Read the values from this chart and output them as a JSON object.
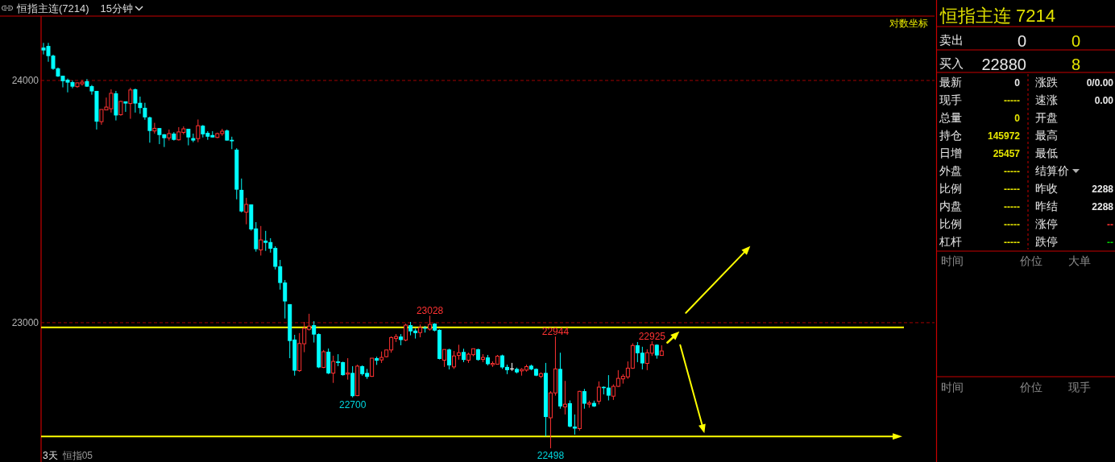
{
  "chart_data": [
    {
      "type": "candlestick",
      "title": "恒指主连(7214)",
      "subtitle": "15分钟",
      "categories": [
        null,
        null,
        null,
        null,
        null,
        null,
        null,
        null,
        null,
        null,
        null,
        null,
        null,
        null,
        null,
        null,
        null,
        null,
        null,
        null,
        null,
        null,
        null,
        null,
        null,
        null,
        null,
        null,
        null,
        null,
        null,
        null,
        null,
        null,
        null,
        null,
        null,
        null,
        null,
        null,
        null,
        null,
        null,
        null,
        null,
        null,
        null,
        null,
        null,
        null,
        null,
        null,
        null,
        null,
        null,
        null,
        null,
        null,
        null,
        null,
        null,
        null,
        null,
        null,
        null,
        null,
        null,
        null,
        null,
        null,
        null,
        null,
        null,
        null,
        null,
        null,
        null,
        null,
        null,
        null,
        null,
        null,
        null,
        null,
        null,
        null,
        null,
        null,
        null,
        null,
        null,
        null,
        null,
        null,
        null,
        null,
        null,
        null,
        null,
        null,
        null,
        null,
        null,
        null,
        null,
        null,
        null,
        null,
        null,
        null,
        null,
        null,
        null,
        null,
        null,
        null,
        null,
        null,
        null,
        null,
        null,
        null,
        null,
        null,
        null,
        null,
        null,
        null,
        null,
        null,
        null,
        null,
        null,
        null,
        null,
        null,
        null,
        null,
        null,
        null,
        null,
        null,
        null,
        null,
        null,
        null,
        null,
        null,
        null,
        null,
        null,
        null,
        null,
        null,
        null,
        null,
        null,
        null,
        null,
        null,
        null,
        null,
        null,
        null,
        null,
        null,
        null,
        null,
        null,
        null,
        null,
        null,
        null,
        null,
        null,
        null,
        null,
        null,
        null,
        null,
        null,
        null,
        null,
        null,
        null
      ],
      "ohlc": [
        [
          24139,
          24159,
          24110,
          24127
        ],
        [
          24146,
          24159,
          24079,
          24103
        ],
        [
          24105,
          24109,
          24045,
          24049
        ],
        [
          24051,
          24055,
          24015,
          24017
        ],
        [
          24020,
          24020,
          23971,
          23997
        ],
        [
          24003,
          24008,
          23950,
          23991
        ],
        [
          23993,
          24000,
          23967,
          23974
        ],
        [
          23974,
          23991,
          23969,
          23990
        ],
        [
          23986,
          24002,
          23978,
          23993
        ],
        [
          23997,
          24006,
          23973,
          23974
        ],
        [
          23976,
          23981,
          23940,
          23954
        ],
        [
          23956,
          23956,
          23794,
          23827
        ],
        [
          23827,
          23878,
          23814,
          23878
        ],
        [
          23876,
          23928,
          23876,
          23888
        ],
        [
          23881,
          23963,
          23865,
          23946
        ],
        [
          23946,
          23956,
          23832,
          23853
        ],
        [
          23856,
          23914,
          23852,
          23912
        ],
        [
          23912,
          23912,
          23868,
          23903
        ],
        [
          23903,
          23969,
          23839,
          23960
        ],
        [
          23963,
          23966,
          23865,
          23903
        ],
        [
          23906,
          23932,
          23860,
          23884
        ],
        [
          23885,
          23906,
          23835,
          23845
        ],
        [
          23845,
          23848,
          23739,
          23788
        ],
        [
          23788,
          23822,
          23777,
          23799
        ],
        [
          23800,
          23800,
          23733,
          23771
        ],
        [
          23774,
          23775,
          23721,
          23758
        ],
        [
          23759,
          23794,
          23748,
          23777
        ],
        [
          23777,
          23783,
          23748,
          23751
        ],
        [
          23751,
          23804,
          23748,
          23784
        ],
        [
          23782,
          23807,
          23774,
          23797
        ],
        [
          23797,
          23797,
          23728,
          23761
        ],
        [
          23758,
          23777,
          23741,
          23748
        ],
        [
          23756,
          23836,
          23741,
          23810
        ],
        [
          23810,
          23813,
          23761,
          23774
        ],
        [
          23780,
          23787,
          23751,
          23764
        ],
        [
          23771,
          23787,
          23761,
          23761
        ],
        [
          23761,
          23781,
          23758,
          23777
        ],
        [
          23777,
          23797,
          23768,
          23787
        ],
        [
          23790,
          23794,
          23748,
          23748
        ],
        [
          23751,
          23764,
          23712,
          23745
        ],
        [
          23710,
          23716,
          23504,
          23544
        ],
        [
          23543,
          23590,
          23450,
          23454
        ],
        [
          23451,
          23510,
          23401,
          23483
        ],
        [
          23483,
          23483,
          23375,
          23380
        ],
        [
          23384,
          23410,
          23289,
          23299
        ],
        [
          23296,
          23394,
          23273,
          23337
        ],
        [
          23334,
          23374,
          23292,
          23325
        ],
        [
          23328,
          23344,
          23285,
          23301
        ],
        [
          23304,
          23311,
          23216,
          23227
        ],
        [
          23229,
          23255,
          23134,
          23161
        ],
        [
          23163,
          23173,
          23017,
          23086
        ],
        [
          23075,
          23075,
          22857,
          22926
        ],
        [
          22932,
          22951,
          22787,
          22807
        ],
        [
          22807,
          22958,
          22802,
          22916
        ],
        [
          22915,
          23003,
          22881,
          22977
        ],
        [
          22973,
          23036,
          22968,
          22986
        ],
        [
          22990,
          23006,
          22920,
          22952
        ],
        [
          22954,
          22957,
          22817,
          22820
        ],
        [
          22820,
          22890,
          22817,
          22883
        ],
        [
          22883,
          22896,
          22793,
          22796
        ],
        [
          22797,
          22867,
          22758,
          22844
        ],
        [
          22844,
          22873,
          22825,
          22838
        ],
        [
          22841,
          22843,
          22787,
          22789
        ],
        [
          22793,
          22857,
          22771,
          22798
        ],
        [
          22798,
          22825,
          22700,
          22705
        ],
        [
          22707,
          22831,
          22705,
          22825
        ],
        [
          22825,
          22828,
          22787,
          22793
        ],
        [
          22798,
          22814,
          22774,
          22782
        ],
        [
          22784,
          22857,
          22782,
          22857
        ],
        [
          22857,
          22863,
          22830,
          22847
        ],
        [
          22850,
          22884,
          22838,
          22860
        ],
        [
          22863,
          22890,
          22860,
          22890
        ],
        [
          22890,
          22945,
          22879,
          22940
        ],
        [
          22936,
          22954,
          22922,
          22944
        ],
        [
          22944,
          22954,
          22909,
          22930
        ],
        [
          22930,
          22996,
          22925,
          22990
        ],
        [
          22990,
          23003,
          22949,
          22965
        ],
        [
          22968,
          22976,
          22936,
          22958
        ],
        [
          22960,
          22993,
          22941,
          22980
        ],
        [
          22980,
          22987,
          22960,
          22976
        ],
        [
          22974,
          23028,
          22968,
          22993
        ],
        [
          22996,
          22998,
          22965,
          22968
        ],
        [
          22971,
          22973,
          22852,
          22854
        ],
        [
          22849,
          22892,
          22822,
          22892
        ],
        [
          22892,
          22895,
          22812,
          22828
        ],
        [
          22822,
          22886,
          22814,
          22866
        ],
        [
          22868,
          22911,
          22851,
          22879
        ],
        [
          22882,
          22895,
          22841,
          22850
        ],
        [
          22849,
          22879,
          22838,
          22873
        ],
        [
          22871,
          22895,
          22865,
          22895
        ],
        [
          22893,
          22895,
          22847,
          22850
        ],
        [
          22852,
          22873,
          22841,
          22860
        ],
        [
          22860,
          22870,
          22828,
          22833
        ],
        [
          22831,
          22844,
          22822,
          22836
        ],
        [
          22833,
          22870,
          22831,
          22865
        ],
        [
          22868,
          22871,
          22814,
          22820
        ],
        [
          22822,
          22831,
          22793,
          22809
        ],
        [
          22814,
          22838,
          22806,
          22814
        ],
        [
          22814,
          22819,
          22796,
          22800
        ],
        [
          22806,
          22817,
          22787,
          22812
        ],
        [
          22809,
          22831,
          22803,
          22823
        ],
        [
          22827,
          22831,
          22809,
          22812
        ],
        [
          22814,
          22816,
          22785,
          22787
        ],
        [
          22784,
          22800,
          22777,
          22795
        ],
        [
          22798,
          22838,
          22545,
          22622
        ],
        [
          22619,
          22725,
          22498,
          22718
        ],
        [
          22718,
          22944,
          22707,
          22814
        ],
        [
          22814,
          22879,
          22655,
          22664
        ],
        [
          22662,
          22766,
          22632,
          22673
        ],
        [
          22677,
          22688,
          22581,
          22584
        ],
        [
          22584,
          22632,
          22552,
          22576
        ],
        [
          22576,
          22726,
          22568,
          22724
        ],
        [
          22725,
          22734,
          22655,
          22675
        ],
        [
          22673,
          22687,
          22659,
          22678
        ],
        [
          22678,
          22687,
          22662,
          22664
        ],
        [
          22685,
          22764,
          22672,
          22741
        ],
        [
          22742,
          22744,
          22712,
          22737
        ],
        [
          22739,
          22789,
          22688,
          22707
        ],
        [
          22705,
          22752,
          22690,
          22744
        ],
        [
          22744,
          22809,
          22742,
          22776
        ],
        [
          22774,
          22793,
          22755,
          22784
        ],
        [
          22782,
          22844,
          22774,
          22817
        ],
        [
          22817,
          22917,
          22814,
          22908
        ],
        [
          22909,
          22922,
          22841,
          22877
        ],
        [
          22879,
          22903,
          22812,
          22836
        ],
        [
          22836,
          22893,
          22809,
          22879
        ],
        [
          22877,
          22925,
          22866,
          22911
        ],
        [
          22911,
          22913,
          22855,
          22868
        ],
        [
          22868,
          22909,
          22868,
          22886
        ],
        null,
        null,
        null,
        null,
        null,
        null,
        null,
        null,
        null,
        null,
        null,
        null,
        null,
        null,
        null,
        null,
        null,
        null,
        null,
        null,
        null,
        null,
        null,
        null,
        null,
        null,
        null,
        null,
        null,
        null,
        null,
        null,
        null,
        null,
        null,
        null,
        null,
        null,
        null,
        null,
        null,
        null,
        null,
        null,
        null,
        null,
        null,
        null,
        null,
        null,
        null,
        null,
        null,
        null,
        null,
        null
      ],
      "colors": [
        "#00ffff",
        "#00ffff",
        "#00ffff",
        "#00ffff",
        "#00ffff",
        "#00ffff",
        "#00ffff",
        "#ff3232",
        "#ff3232",
        "#00ffff",
        "#00ffff",
        "#00ffff",
        "#ff3232",
        "#ff3232",
        "#ff3232",
        "#00ffff",
        "#ff3232",
        "#00ffff",
        "#ff3232",
        "#00ffff",
        "#00ffff",
        "#00ffff",
        "#00ffff",
        "#ff3232",
        "#00ffff",
        "#00ffff",
        "#ff3232",
        "#00ffff",
        "#ff3232",
        "#ff3232",
        "#00ffff",
        "#00ffff",
        "#ff3232",
        "#00ffff",
        "#00ffff",
        "#00ffff",
        "#ff3232",
        "#ff3232",
        "#00ffff",
        "#00ffff",
        "#00ffff",
        "#00ffff",
        "#ff3232",
        "#00ffff",
        "#00ffff",
        "#ff3232",
        "#00ffff",
        "#00ffff",
        "#00ffff",
        "#00ffff",
        "#00ffff",
        "#00ffff",
        "#00ffff",
        "#ff3232",
        "#ff3232",
        "#ff3232",
        "#00ffff",
        "#00ffff",
        "#ff3232",
        "#00ffff",
        "#ff3232",
        "#00ffff",
        "#00ffff",
        "#ff3232",
        "#00ffff",
        "#ff3232",
        "#00ffff",
        "#00ffff",
        "#ff3232",
        "#00ffff",
        "#ff3232",
        "#ff3232",
        "#ff3232",
        "#ff3232",
        "#00ffff",
        "#ff3232",
        "#00ffff",
        "#00ffff",
        "#ff3232",
        "#00ffff",
        "#ff3232",
        "#00ffff",
        "#00ffff",
        "#ff3232",
        "#00ffff",
        "#ff3232",
        "#ff3232",
        "#00ffff",
        "#ff3232",
        "#ff3232",
        "#00ffff",
        "#ff3232",
        "#00ffff",
        "#ff3232",
        "#ff3232",
        "#00ffff",
        "#00ffff",
        "#ffffff",
        "#00ffff",
        "#ff3232",
        "#ff3232",
        "#00ffff",
        "#00ffff",
        "#ff3232",
        "#00ffff",
        "#ff3232",
        "#ff3232",
        "#00ffff",
        "#ff3232",
        "#00ffff",
        "#00ffff",
        "#ff3232",
        "#00ffff",
        "#ff3232",
        "#00ffff",
        "#ff3232",
        "#00ffff",
        "#00ffff",
        "#ff3232",
        "#ff3232",
        "#ff3232",
        "#ff3232",
        "#ff3232",
        "#00ffff",
        "#00ffff",
        "#ff3232",
        "#ff3232",
        "#00ffff",
        "#ff3232",
        null,
        null,
        null,
        null,
        null,
        null,
        null,
        null,
        null,
        null,
        null,
        null,
        null,
        null,
        null,
        null,
        null,
        null,
        null,
        null,
        null,
        null,
        null,
        null,
        null,
        null,
        null,
        null,
        null,
        null,
        null,
        null,
        null,
        null,
        null,
        null,
        null,
        null,
        null,
        null,
        null,
        null,
        null,
        null,
        null,
        null,
        null,
        null,
        null,
        null,
        null,
        null,
        null,
        null,
        null,
        null
      ],
      "log": true,
      "ylim": [
        22447,
        24273
      ],
      "yticks": [
        23000,
        24000
      ],
      "grid": "y",
      "ref_lines": [
        {
          "axis": "y",
          "value": 22981,
          "color": "#ffff00"
        },
        {
          "axis": "y",
          "value": 22545,
          "color": "#ffff00"
        }
      ],
      "annotations": [
        "对数坐标",
        {
          "text": "23028",
          "y": 23028
        },
        {
          "text": "22944",
          "y": 22944
        },
        {
          "text": "22925",
          "y": 22925
        },
        {
          "text": "22700",
          "y": 22700
        },
        {
          "text": "22498",
          "y": 22498
        },
        "3天",
        "恒指05"
      ]
    },
    {
      "type": "other",
      "title": "恒指主连 7214",
      "annotations": [
        "卖出",
        "0",
        "0",
        "买入",
        "22880",
        "8",
        "最新",
        "0",
        "涨跌",
        "0/0.00",
        "现手",
        "-----",
        "速涨",
        "0.00",
        "总量",
        "0",
        "开盘",
        "持仓",
        "145972",
        "最高",
        "日增",
        "25457",
        "最低",
        "外盘",
        "-----",
        "结算价",
        "比例",
        "-----",
        "昨收",
        "2288",
        "内盘",
        "-----",
        "昨结",
        "2288",
        "比例",
        "-----",
        "涨停",
        "--",
        "杠杆",
        "-----",
        "跌停",
        "--",
        "时间",
        "价位",
        "大单",
        "时间",
        "价位",
        "现手"
      ]
    }
  ]
}
